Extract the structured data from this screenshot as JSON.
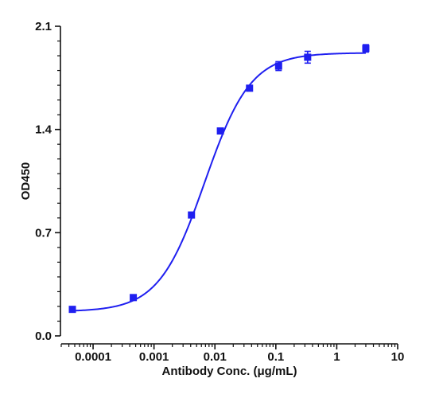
{
  "chart_data": {
    "type": "scatter",
    "title": "",
    "xlabel": "Antibody Conc. (μg/mL)",
    "ylabel": "OD450",
    "x_scale": "log",
    "xlim": [
      3e-05,
      10
    ],
    "ylim": [
      0.0,
      2.1
    ],
    "x_ticks": [
      {
        "value": 0.0001,
        "label": "0.0001"
      },
      {
        "value": 0.001,
        "label": "0.001"
      },
      {
        "value": 0.01,
        "label": "0.01"
      },
      {
        "value": 0.1,
        "label": "0.1"
      },
      {
        "value": 1,
        "label": "1"
      },
      {
        "value": 10,
        "label": "10"
      }
    ],
    "y_ticks": [
      {
        "value": 0.0,
        "label": "0.0"
      },
      {
        "value": 0.7,
        "label": "0.7"
      },
      {
        "value": 1.4,
        "label": "1.4"
      },
      {
        "value": 2.1,
        "label": "2.1"
      }
    ],
    "grid": false,
    "legend": "none",
    "color": "#1f1ff0",
    "series": [
      {
        "points": [
          {
            "x": 4.57e-05,
            "y": 0.18,
            "err": 0.0
          },
          {
            "x": 0.000457,
            "y": 0.26,
            "err": 0.0
          },
          {
            "x": 0.00412,
            "y": 0.82,
            "err": 0.0
          },
          {
            "x": 0.0123,
            "y": 1.39,
            "err": 0.0
          },
          {
            "x": 0.037,
            "y": 1.68,
            "err": 0.0
          },
          {
            "x": 0.111,
            "y": 1.83,
            "err": 0.03
          },
          {
            "x": 0.333,
            "y": 1.89,
            "err": 0.04
          },
          {
            "x": 3.0,
            "y": 1.95,
            "err": 0.025
          }
        ],
        "fit": {
          "type": "4PL",
          "bottom": 0.165,
          "top": 1.92,
          "ec50": 0.0068,
          "hill": 1.15
        }
      }
    ]
  }
}
